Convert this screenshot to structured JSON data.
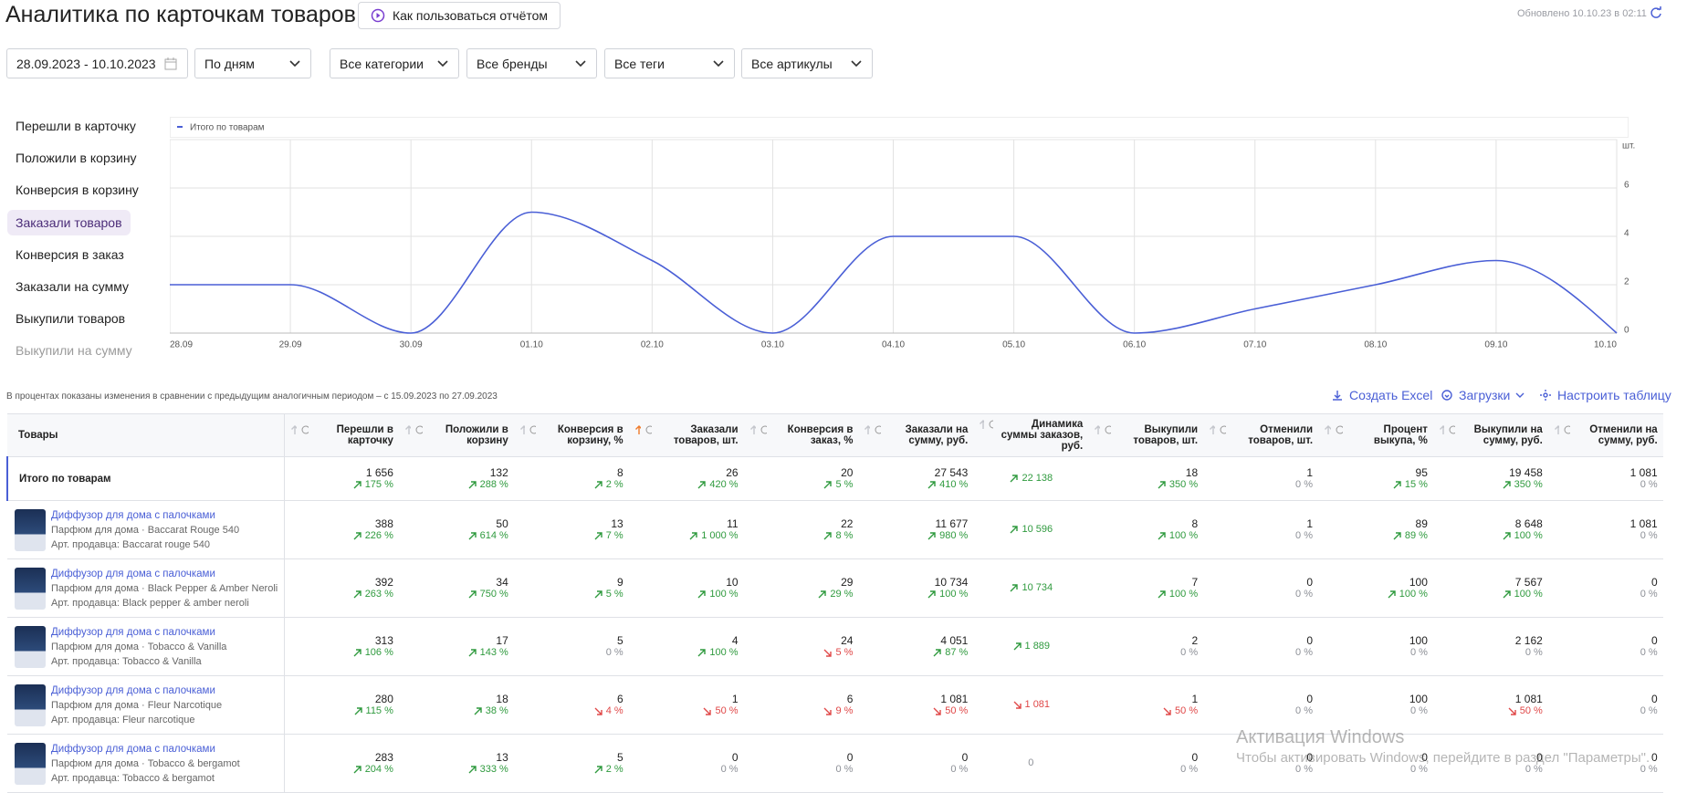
{
  "header": {
    "title": "Аналитика по карточкам товаров",
    "help_button": "Как пользоваться отчётом",
    "updated": "Обновлено 10.10.23 в 02:11"
  },
  "filters": [
    "28.09.2023 - 10.10.2023",
    "По дням",
    "Все категории",
    "Все бренды",
    "Все теги",
    "Все артикулы"
  ],
  "metrics": {
    "items": [
      "Перешли в карточку",
      "Положили в корзину",
      "Конверсия в корзину",
      "Заказали товаров",
      "Конверсия в заказ",
      "Заказали на сумму",
      "Выкупили товаров",
      "Выкупили на сумму"
    ],
    "active": 3
  },
  "chart_data": {
    "type": "line",
    "categories": [
      "28.09",
      "29.09",
      "30.09",
      "01.10",
      "02.10",
      "03.10",
      "04.10",
      "05.10",
      "06.10",
      "07.10",
      "08.10",
      "09.10",
      "10.10"
    ],
    "series": [
      {
        "name": "Итого по товарам",
        "color": "#4a5fd6",
        "values": [
          2,
          2,
          0,
          5,
          3,
          0,
          4,
          4,
          0,
          1,
          2,
          3,
          0
        ]
      }
    ],
    "ylim": [
      0,
      8
    ],
    "yticks": [
      0,
      2,
      4,
      6
    ],
    "y_unit": "шт.",
    "grid": true
  },
  "table": {
    "note": "В процентах показаны изменения в сравнении с предыдущим аналогичным периодом – с 15.09.2023 по 27.09.2023",
    "actions": [
      "Создать Excel",
      "Загрузки",
      "Настроить таблицу"
    ],
    "columns": [
      "Товары",
      "Перешли в карточку",
      "Положили в корзину",
      "Конверсия в корзину, %",
      "Заказали товаров, шт.",
      "Конверсия в заказ, %",
      "Заказали на сумму, руб.",
      "Динамика суммы заказов, руб.",
      "Выкупили товаров, шт.",
      "Отменили товаров, шт.",
      "Процент выкупа, %",
      "Выкупили на сумму, руб.",
      "Отменили на сумму, руб."
    ],
    "sorted_column": 4,
    "total": {
      "label": "Итого по товарам",
      "cells": [
        {
          "value": "1 656",
          "change": "175 %",
          "trend": "up"
        },
        {
          "value": "132",
          "change": "288 %",
          "trend": "up"
        },
        {
          "value": "8",
          "change": "2 %",
          "trend": "up"
        },
        {
          "value": "26",
          "change": "420 %",
          "trend": "up"
        },
        {
          "value": "20",
          "change": "5 %",
          "trend": "up"
        },
        {
          "value": "27 543",
          "change": "410 %",
          "trend": "up"
        },
        {
          "value": "22 138",
          "trend": "up"
        },
        {
          "value": "18",
          "change": "350 %",
          "trend": "up"
        },
        {
          "value": "1",
          "change": "0 %",
          "trend": "flat"
        },
        {
          "value": "95",
          "change": "15 %",
          "trend": "up"
        },
        {
          "value": "19 458",
          "change": "350 %",
          "trend": "up"
        },
        {
          "value": "1 081",
          "change": "0 %",
          "trend": "flat"
        }
      ]
    },
    "rows": [
      {
        "name": "Диффузор для дома с палочками",
        "subtitle": "Парфюм для дома · Baccarat Rouge 540",
        "article": "Арт. продавца: Baccarat rouge 540",
        "cells": [
          {
            "value": "388",
            "change": "226 %",
            "trend": "up"
          },
          {
            "value": "50",
            "change": "614 %",
            "trend": "up"
          },
          {
            "value": "13",
            "change": "7 %",
            "trend": "up"
          },
          {
            "value": "11",
            "change": "1 000 %",
            "trend": "up"
          },
          {
            "value": "22",
            "change": "8 %",
            "trend": "up"
          },
          {
            "value": "11 677",
            "change": "980 %",
            "trend": "up"
          },
          {
            "value": "10 596",
            "trend": "up"
          },
          {
            "value": "8",
            "change": "100 %",
            "trend": "up"
          },
          {
            "value": "1",
            "change": "0 %",
            "trend": "flat"
          },
          {
            "value": "89",
            "change": "89 %",
            "trend": "up"
          },
          {
            "value": "8 648",
            "change": "100 %",
            "trend": "up"
          },
          {
            "value": "1 081",
            "change": "0 %",
            "trend": "flat"
          }
        ]
      },
      {
        "name": "Диффузор для дома с палочками",
        "subtitle": "Парфюм для дома · Black Pepper & Amber Neroli",
        "article": "Арт. продавца: Black pepper & amber neroli",
        "cells": [
          {
            "value": "392",
            "change": "263 %",
            "trend": "up"
          },
          {
            "value": "34",
            "change": "750 %",
            "trend": "up"
          },
          {
            "value": "9",
            "change": "5 %",
            "trend": "up"
          },
          {
            "value": "10",
            "change": "100 %",
            "trend": "up"
          },
          {
            "value": "29",
            "change": "29 %",
            "trend": "up"
          },
          {
            "value": "10 734",
            "change": "100 %",
            "trend": "up"
          },
          {
            "value": "10 734",
            "trend": "up"
          },
          {
            "value": "7",
            "change": "100 %",
            "trend": "up"
          },
          {
            "value": "0",
            "change": "0 %",
            "trend": "flat"
          },
          {
            "value": "100",
            "change": "100 %",
            "trend": "up"
          },
          {
            "value": "7 567",
            "change": "100 %",
            "trend": "up"
          },
          {
            "value": "0",
            "change": "0 %",
            "trend": "flat"
          }
        ]
      },
      {
        "name": "Диффузор для дома с палочками",
        "subtitle": "Парфюм для дома · Tobacco & Vanilla",
        "article": "Арт. продавца: Tobacco & Vanilla",
        "cells": [
          {
            "value": "313",
            "change": "106 %",
            "trend": "up"
          },
          {
            "value": "17",
            "change": "143 %",
            "trend": "up"
          },
          {
            "value": "5",
            "change": "0 %",
            "trend": "flat"
          },
          {
            "value": "4",
            "change": "100 %",
            "trend": "up"
          },
          {
            "value": "24",
            "change": "5 %",
            "trend": "down"
          },
          {
            "value": "4 051",
            "change": "87 %",
            "trend": "up"
          },
          {
            "value": "1 889",
            "trend": "up"
          },
          {
            "value": "2",
            "change": "0 %",
            "trend": "flat"
          },
          {
            "value": "0",
            "change": "0 %",
            "trend": "flat"
          },
          {
            "value": "100",
            "change": "0 %",
            "trend": "flat"
          },
          {
            "value": "2 162",
            "change": "0 %",
            "trend": "flat"
          },
          {
            "value": "0",
            "change": "0 %",
            "trend": "flat"
          }
        ]
      },
      {
        "name": "Диффузор для дома с палочками",
        "subtitle": "Парфюм для дома · Fleur Narcotique",
        "article": "Арт. продавца: Fleur narcotique",
        "cells": [
          {
            "value": "280",
            "change": "115 %",
            "trend": "up"
          },
          {
            "value": "18",
            "change": "38 %",
            "trend": "up"
          },
          {
            "value": "6",
            "change": "4 %",
            "trend": "down"
          },
          {
            "value": "1",
            "change": "50 %",
            "trend": "down"
          },
          {
            "value": "6",
            "change": "9 %",
            "trend": "down"
          },
          {
            "value": "1 081",
            "change": "50 %",
            "trend": "down"
          },
          {
            "value": "1 081",
            "trend": "down"
          },
          {
            "value": "1",
            "change": "50 %",
            "trend": "down"
          },
          {
            "value": "0",
            "change": "0 %",
            "trend": "flat"
          },
          {
            "value": "100",
            "change": "0 %",
            "trend": "flat"
          },
          {
            "value": "1 081",
            "change": "50 %",
            "trend": "down"
          },
          {
            "value": "0",
            "change": "0 %",
            "trend": "flat"
          }
        ]
      },
      {
        "name": "Диффузор для дома с палочками",
        "subtitle": "Парфюм для дома · Tobacco & bergamot",
        "article": "Арт. продавца: Tobacco & bergamot",
        "cells": [
          {
            "value": "283",
            "change": "204 %",
            "trend": "up"
          },
          {
            "value": "13",
            "change": "333 %",
            "trend": "up"
          },
          {
            "value": "5",
            "change": "2 %",
            "trend": "up"
          },
          {
            "value": "0",
            "change": "0 %",
            "trend": "flat"
          },
          {
            "value": "0",
            "change": "0 %",
            "trend": "flat"
          },
          {
            "value": "0",
            "change": "0 %",
            "trend": "flat"
          },
          {
            "value": "0",
            "trend": "flat"
          },
          {
            "value": "0",
            "change": "0 %",
            "trend": "flat"
          },
          {
            "value": "0",
            "change": "0 %",
            "trend": "flat"
          },
          {
            "value": "0",
            "change": "0 %",
            "trend": "flat"
          },
          {
            "value": "0",
            "change": "0 %",
            "trend": "flat"
          },
          {
            "value": "0",
            "change": "0 %",
            "trend": "flat"
          }
        ]
      }
    ]
  },
  "watermark": {
    "title": "Активация Windows",
    "text": "Чтобы активировать Windows, перейдите в раздел \"Параметры\"."
  }
}
